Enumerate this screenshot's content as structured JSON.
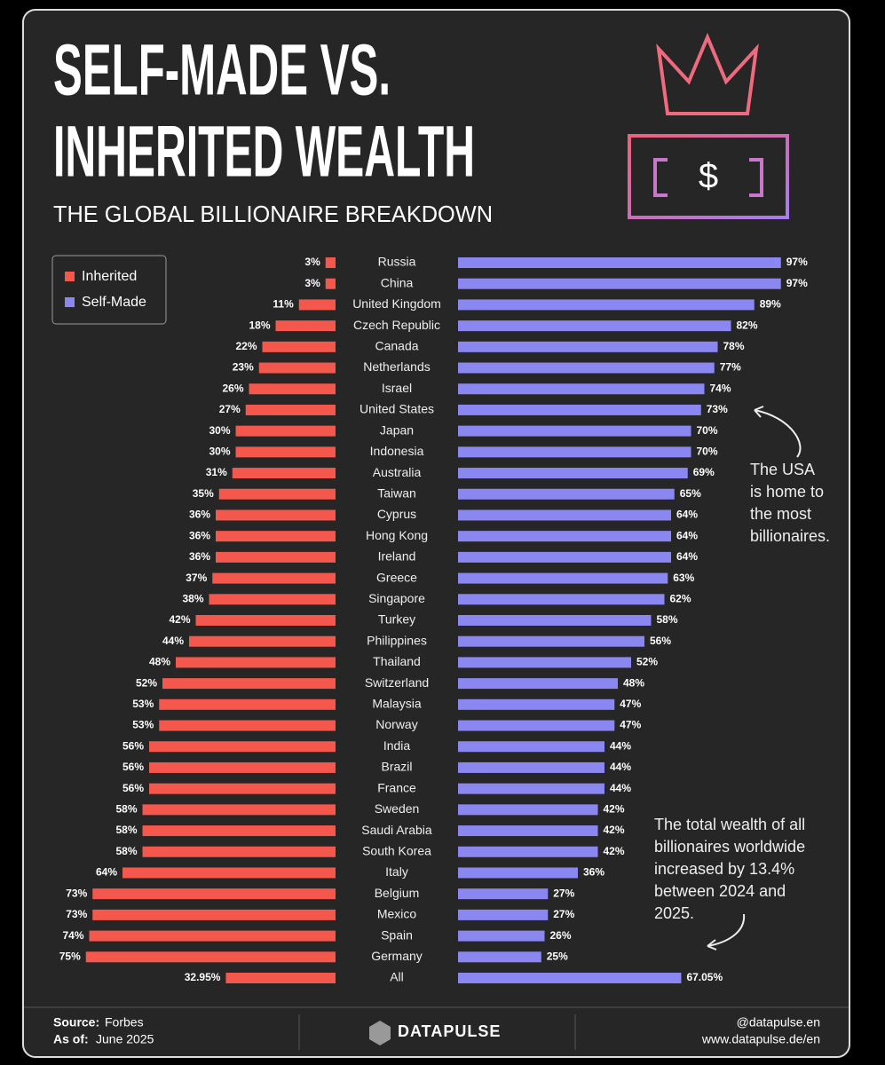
{
  "chart_data": {
    "type": "diverging-bar",
    "title": [
      "SELF-MADE VS.",
      "INHERITED WEALTH"
    ],
    "subtitle": "THE GLOBAL BILLIONAIRE BREAKDOWN",
    "icon_text": "$",
    "categories": [
      "Russia",
      "China",
      "United Kingdom",
      "Czech Republic",
      "Canada",
      "Netherlands",
      "Israel",
      "United States",
      "Japan",
      "Indonesia",
      "Australia",
      "Taiwan",
      "Cyprus",
      "Hong Kong",
      "Ireland",
      "Greece",
      "Singapore",
      "Turkey",
      "Philippines",
      "Thailand",
      "Switzerland",
      "Malaysia",
      "Norway",
      "India",
      "Brazil",
      "France",
      "Sweden",
      "Saudi Arabia",
      "South Korea",
      "Italy",
      "Belgium",
      "Mexico",
      "Spain",
      "Germany",
      "All"
    ],
    "series": [
      {
        "name": "Inherited",
        "color": "#f4574b",
        "side": "left",
        "values": [
          3,
          3,
          11,
          18,
          22,
          23,
          26,
          27,
          30,
          30,
          31,
          35,
          36,
          36,
          36,
          37,
          38,
          42,
          44,
          48,
          52,
          53,
          53,
          56,
          56,
          56,
          58,
          58,
          58,
          64,
          73,
          73,
          74,
          75,
          32.95
        ],
        "value_labels": [
          "3%",
          "3%",
          "11%",
          "18%",
          "22%",
          "23%",
          "26%",
          "27%",
          "30%",
          "30%",
          "31%",
          "35%",
          "36%",
          "36%",
          "36%",
          "37%",
          "38%",
          "42%",
          "44%",
          "48%",
          "52%",
          "53%",
          "53%",
          "56%",
          "56%",
          "56%",
          "58%",
          "58%",
          "58%",
          "64%",
          "73%",
          "73%",
          "74%",
          "75%",
          "32.95%"
        ]
      },
      {
        "name": "Self-Made",
        "color": "#8b87f0",
        "side": "right",
        "values": [
          97,
          97,
          89,
          82,
          78,
          77,
          74,
          73,
          70,
          70,
          69,
          65,
          64,
          64,
          64,
          63,
          62,
          58,
          56,
          52,
          48,
          47,
          47,
          44,
          44,
          44,
          42,
          42,
          42,
          36,
          27,
          27,
          26,
          25,
          67.05
        ],
        "value_labels": [
          "97%",
          "97%",
          "89%",
          "82%",
          "78%",
          "77%",
          "74%",
          "73%",
          "70%",
          "70%",
          "69%",
          "65%",
          "64%",
          "64%",
          "64%",
          "63%",
          "62%",
          "58%",
          "56%",
          "52%",
          "48%",
          "47%",
          "47%",
          "44%",
          "44%",
          "44%",
          "42%",
          "42%",
          "42%",
          "36%",
          "27%",
          "27%",
          "26%",
          "25%",
          "67.05%"
        ]
      }
    ],
    "annotations": [
      [
        "The USA",
        "is home to",
        "the most",
        "billionaires."
      ],
      [
        "The total wealth of all",
        "billionaires worldwide",
        "increased by 13.4%",
        "between 2024 and",
        "2025."
      ]
    ],
    "footer": {
      "source_label": "Source:",
      "source": "Forbes",
      "date_label": "As of:",
      "date": "June 2025",
      "brand": "DATAPULSE",
      "handle": "@datapulse.en",
      "url": "www.datapulse.de/en"
    }
  }
}
